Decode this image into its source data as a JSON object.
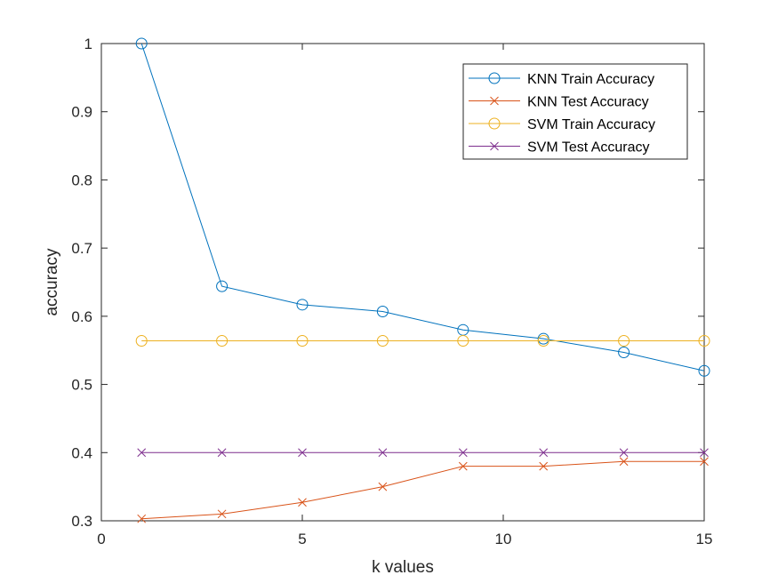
{
  "chart_data": {
    "type": "line",
    "title": "",
    "xlabel": "k values",
    "ylabel": "accuracy",
    "xlim": [
      0,
      15
    ],
    "ylim": [
      0.3,
      1.0
    ],
    "xticks": [
      0,
      5,
      10,
      15
    ],
    "yticks": [
      0.3,
      0.4,
      0.5,
      0.6,
      0.7,
      0.8,
      0.9,
      1.0
    ],
    "xtick_labels": [
      "0",
      "5",
      "10",
      "15"
    ],
    "ytick_labels": [
      "0.3",
      "0.4",
      "0.5",
      "0.6",
      "0.7",
      "0.8",
      "0.9",
      "1"
    ],
    "grid": false,
    "legend_position": "top-right",
    "x": [
      1,
      3,
      5,
      7,
      9,
      11,
      13,
      15
    ],
    "series": [
      {
        "name": "KNN Train Accuracy",
        "color": "#0072BD",
        "marker": "circle",
        "values": [
          1.0,
          0.644,
          0.617,
          0.607,
          0.58,
          0.567,
          0.547,
          0.52
        ]
      },
      {
        "name": "KNN Test Accuracy",
        "color": "#D95319",
        "marker": "x",
        "values": [
          0.303,
          0.31,
          0.327,
          0.35,
          0.38,
          0.38,
          0.387,
          0.387
        ]
      },
      {
        "name": "SVM Train Accuracy",
        "color": "#EDB120",
        "marker": "circle",
        "values": [
          0.564,
          0.564,
          0.564,
          0.564,
          0.564,
          0.564,
          0.564,
          0.564
        ]
      },
      {
        "name": "SVM Test Accuracy",
        "color": "#7E2F8E",
        "marker": "x",
        "values": [
          0.4,
          0.4,
          0.4,
          0.4,
          0.4,
          0.4,
          0.4,
          0.4
        ]
      }
    ]
  }
}
